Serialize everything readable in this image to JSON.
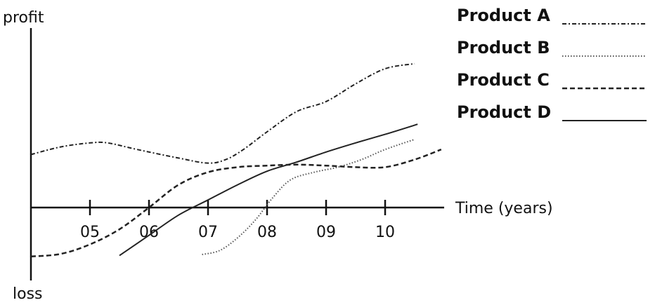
{
  "chart_data": {
    "type": "line",
    "title": "",
    "xlabel": "Time (years)",
    "ylabel_top": "profit",
    "ylabel_bottom": "loss",
    "x_ticks": [
      "05",
      "06",
      "07",
      "08",
      "09",
      "10"
    ],
    "xlim": [
      4.0,
      11.0
    ],
    "ylim": [
      -10,
      30
    ],
    "grid": false,
    "legend_position": "top-right",
    "series": [
      {
        "name": "Product A",
        "style": "dash-dot",
        "color": "#222222",
        "points": [
          [
            4.0,
            10.5
          ],
          [
            4.5,
            12.0
          ],
          [
            5.0,
            12.8
          ],
          [
            5.3,
            12.8
          ],
          [
            5.8,
            11.5
          ],
          [
            6.5,
            9.8
          ],
          [
            7.0,
            8.8
          ],
          [
            7.3,
            9.5
          ],
          [
            7.6,
            11.5
          ],
          [
            8.0,
            15.0
          ],
          [
            8.5,
            19.0
          ],
          [
            9.0,
            21.0
          ],
          [
            9.5,
            24.5
          ],
          [
            10.0,
            27.5
          ],
          [
            10.5,
            28.5
          ]
        ]
      },
      {
        "name": "Product B",
        "style": "dotted",
        "color": "#555555",
        "points": [
          [
            6.9,
            -9.3
          ],
          [
            7.2,
            -8.5
          ],
          [
            7.5,
            -6.0
          ],
          [
            7.8,
            -2.5
          ],
          [
            8.1,
            2.0
          ],
          [
            8.4,
            5.5
          ],
          [
            8.8,
            7.0
          ],
          [
            9.2,
            8.0
          ],
          [
            9.6,
            9.5
          ],
          [
            10.0,
            11.5
          ],
          [
            10.5,
            13.5
          ]
        ]
      },
      {
        "name": "Product C",
        "style": "dashed",
        "color": "#222222",
        "points": [
          [
            4.0,
            -9.7
          ],
          [
            4.5,
            -9.2
          ],
          [
            5.0,
            -7.3
          ],
          [
            5.5,
            -4.3
          ],
          [
            6.0,
            0.0
          ],
          [
            6.5,
            4.5
          ],
          [
            7.0,
            7.0
          ],
          [
            7.5,
            8.0
          ],
          [
            8.0,
            8.3
          ],
          [
            8.5,
            8.5
          ],
          [
            9.0,
            8.3
          ],
          [
            9.5,
            8.0
          ],
          [
            10.0,
            8.0
          ],
          [
            10.5,
            9.5
          ],
          [
            10.95,
            11.5
          ]
        ]
      },
      {
        "name": "Product D",
        "style": "solid",
        "color": "#222222",
        "points": [
          [
            5.5,
            -9.5
          ],
          [
            6.0,
            -5.5
          ],
          [
            6.5,
            -1.5
          ],
          [
            7.0,
            1.5
          ],
          [
            7.5,
            4.5
          ],
          [
            8.0,
            7.2
          ],
          [
            8.5,
            9.0
          ],
          [
            9.0,
            11.0
          ],
          [
            9.5,
            12.8
          ],
          [
            10.0,
            14.5
          ],
          [
            10.55,
            16.5
          ]
        ]
      }
    ]
  }
}
